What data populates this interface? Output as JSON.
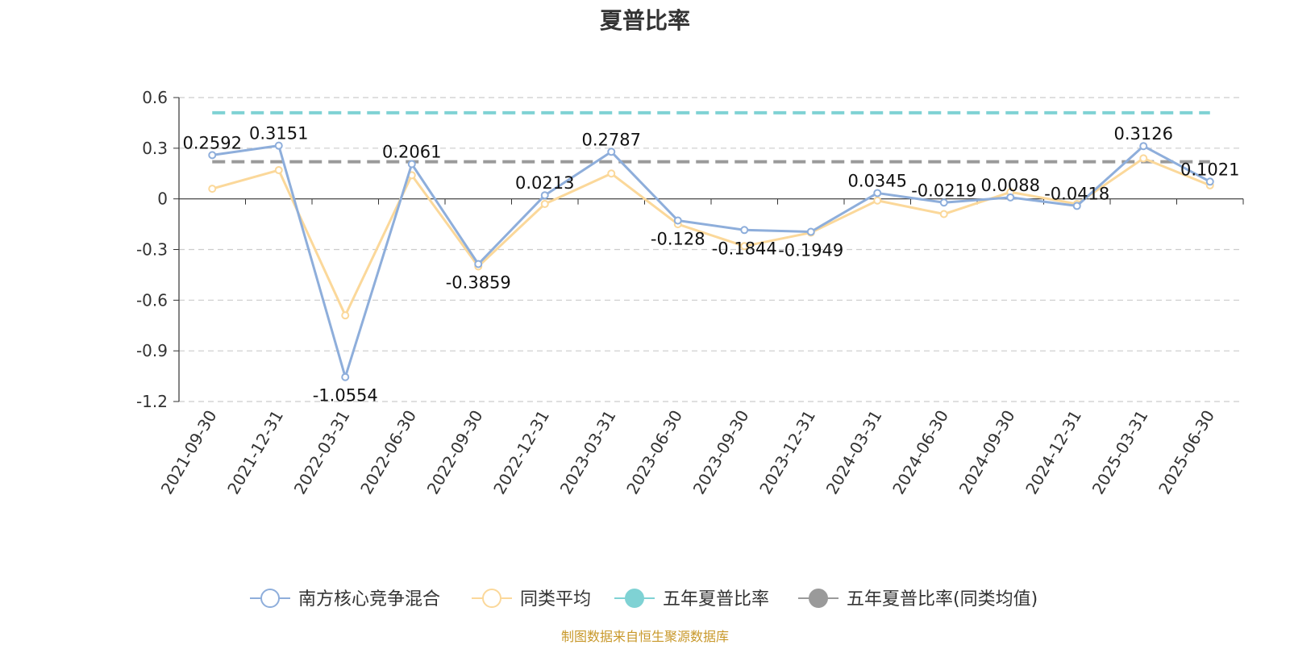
{
  "chart_data": {
    "type": "line",
    "title": "夏普比率",
    "categories": [
      "2021-09-30",
      "2021-12-31",
      "2022-03-31",
      "2022-06-30",
      "2022-09-30",
      "2022-12-31",
      "2023-03-31",
      "2023-06-30",
      "2023-09-30",
      "2023-12-31",
      "2024-03-31",
      "2024-06-30",
      "2024-09-30",
      "2024-12-31",
      "2025-03-31",
      "2025-06-30"
    ],
    "ylim": [
      -1.2,
      0.6
    ],
    "yticks": [
      "0.6",
      "0.3",
      "0",
      "-0.3",
      "-0.6",
      "-0.9",
      "-1.2"
    ],
    "grid": true,
    "legend_position": "bottom",
    "series": [
      {
        "name": "南方核心竞争混合",
        "color": "#8eaedb",
        "values": [
          0.2592,
          0.3151,
          -1.0554,
          0.2061,
          -0.3859,
          0.0213,
          0.2787,
          -0.128,
          -0.1844,
          -0.1949,
          0.0345,
          -0.0219,
          0.0088,
          -0.0418,
          0.3126,
          0.1021
        ],
        "labels": [
          "0.2592",
          "0.3151",
          "-1.0554",
          "0.2061",
          "-0.3859",
          "0.0213",
          "0.2787",
          "-0.128",
          "-0.1844",
          "-0.1949",
          "0.0345",
          "-0.0219",
          "0.0088",
          "-0.0418",
          "0.3126",
          "0.1021"
        ]
      },
      {
        "name": "同类平均",
        "color": "#fbd89a",
        "values": [
          0.06,
          0.17,
          -0.69,
          0.14,
          -0.4,
          -0.03,
          0.15,
          -0.15,
          -0.28,
          -0.2,
          -0.01,
          -0.09,
          0.04,
          -0.03,
          0.24,
          0.08
        ]
      },
      {
        "name": "五年夏普比率",
        "color": "#7fd2d4",
        "dashed": true,
        "value": 0.51
      },
      {
        "name": "五年夏普比率(同类均值)",
        "color": "#9a9a9a",
        "dashed": true,
        "value": 0.22
      }
    ]
  },
  "source_note": "制图数据来自恒生聚源数据库"
}
